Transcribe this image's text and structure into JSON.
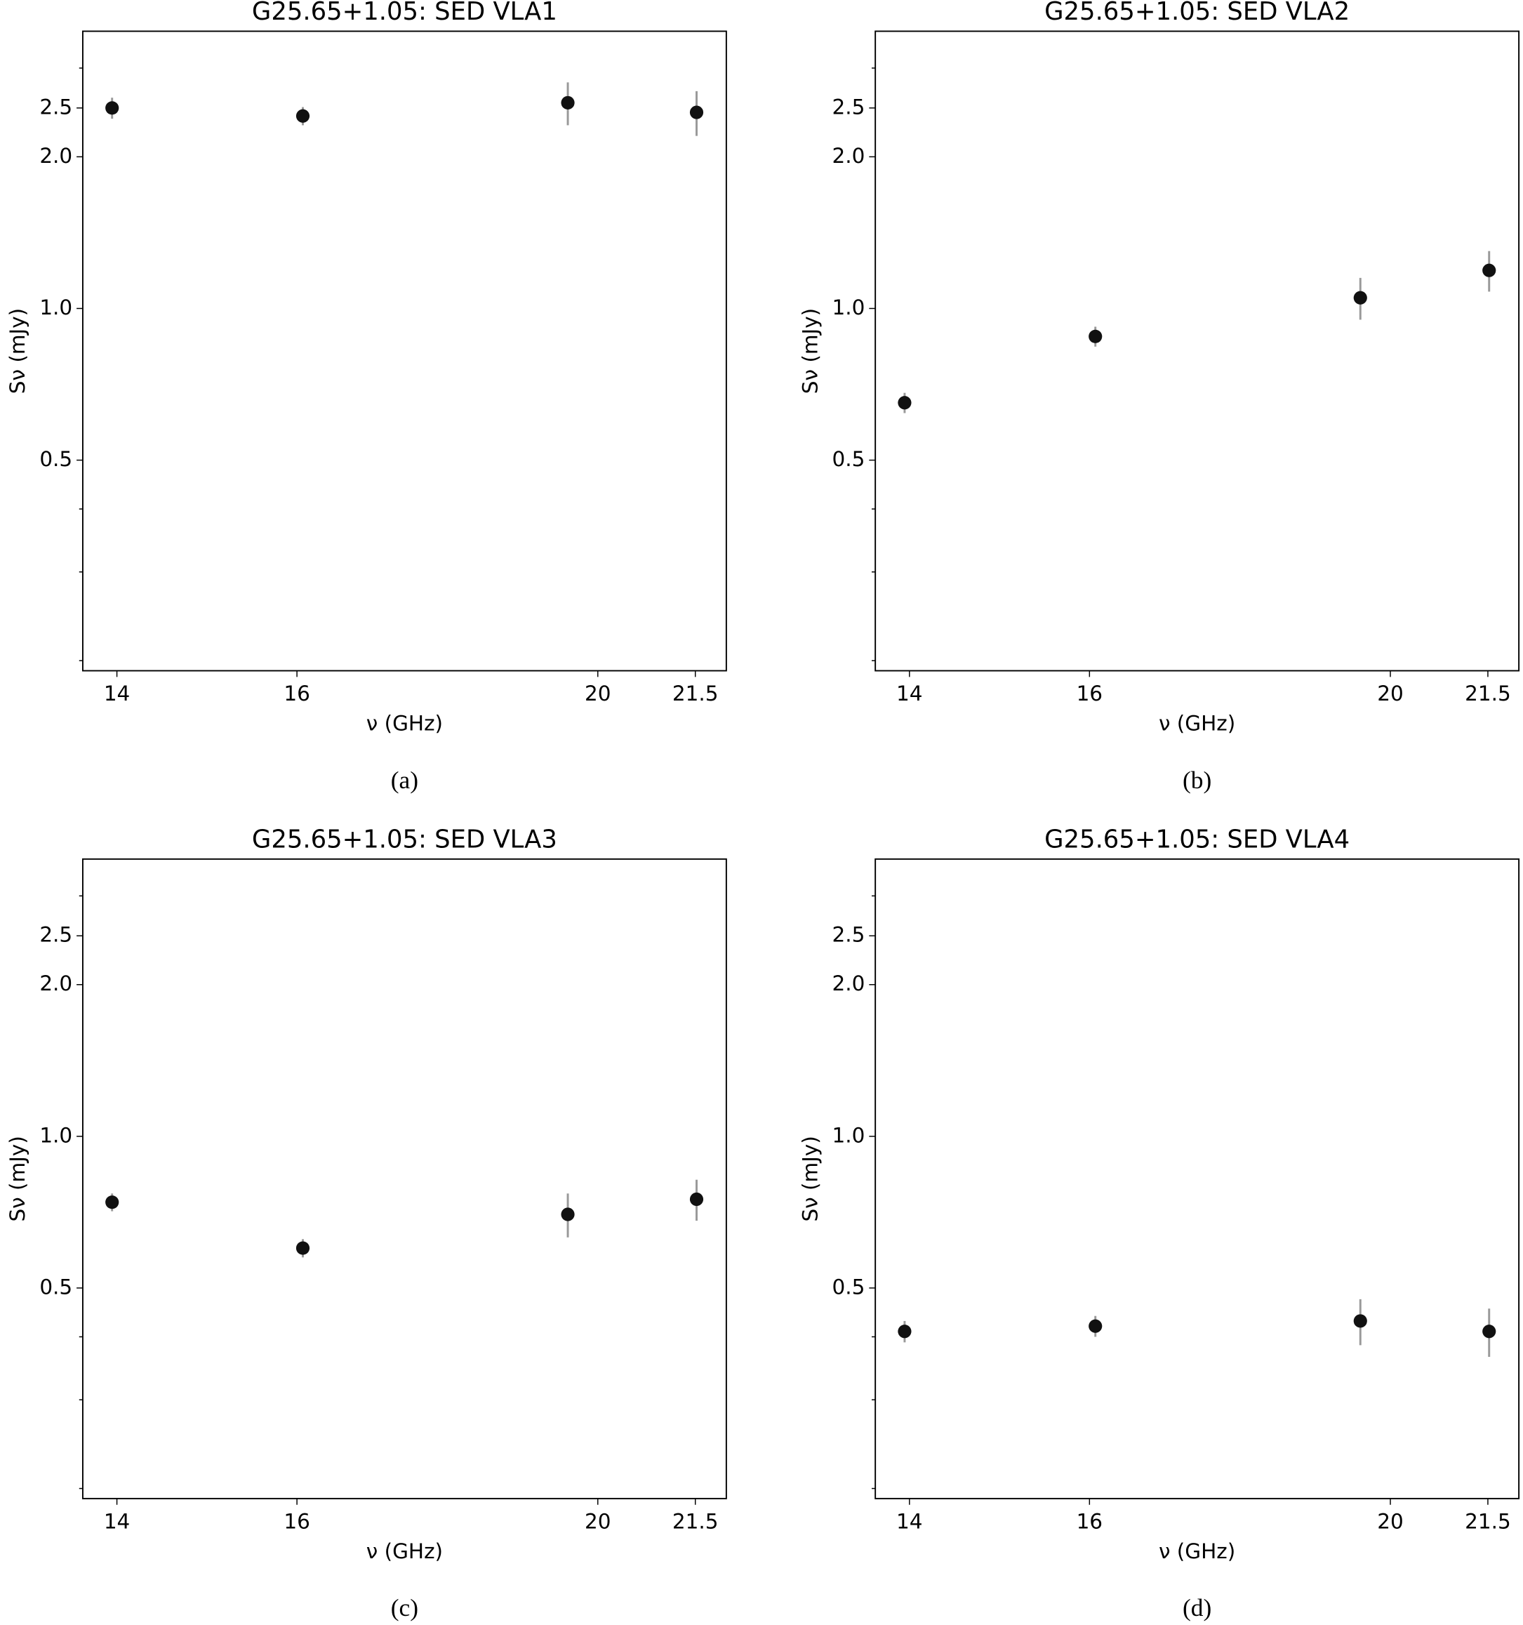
{
  "chart_data": [
    {
      "type": "scatter",
      "title": "G25.65+1.05: SED VLA1",
      "caption": "(a)",
      "x_label": "ν (GHz)",
      "y_label": "Sν (mJy)",
      "x": [
        13.95,
        16.07,
        19.56,
        21.52
      ],
      "values": [
        2.5,
        2.41,
        2.56,
        2.45
      ],
      "errors": [
        0.12,
        0.1,
        0.25,
        0.25
      ],
      "color": "#111111",
      "error_color": "#999999",
      "xscale": "log",
      "yscale": "log",
      "xlim": [
        13.65,
        22
      ],
      "ylim": [
        0.191,
        3.55
      ],
      "xticks": [
        14,
        16,
        20,
        21.5
      ],
      "yticks": [
        {
          "value": 0.5,
          "label": "0.5"
        },
        {
          "value": 1,
          "label": "1.0"
        },
        {
          "value": 2,
          "label": "2.0"
        },
        {
          "value": 2.5,
          "label": "2.5"
        }
      ],
      "yminorticks": [
        0.2,
        0.3,
        0.4,
        3
      ]
    },
    {
      "type": "scatter",
      "title": "G25.65+1.05: SED VLA2",
      "caption": "(b)",
      "x_label": "ν (GHz)",
      "y_label": "Sν (mJy)",
      "x": [
        13.95,
        16.07,
        19.56,
        21.52
      ],
      "values": [
        0.65,
        0.88,
        1.05,
        1.19
      ],
      "errors": [
        0.03,
        0.04,
        0.1,
        0.11
      ],
      "color": "#111111",
      "error_color": "#999999",
      "xscale": "log",
      "yscale": "log",
      "xlim": [
        13.65,
        22
      ],
      "ylim": [
        0.191,
        3.55
      ],
      "xticks": [
        14,
        16,
        20,
        21.5
      ],
      "yticks": [
        {
          "value": 0.5,
          "label": "0.5"
        },
        {
          "value": 1,
          "label": "1.0"
        },
        {
          "value": 2,
          "label": "2.0"
        },
        {
          "value": 2.5,
          "label": "2.5"
        }
      ],
      "yminorticks": [
        0.2,
        0.3,
        0.4,
        3
      ]
    },
    {
      "type": "scatter",
      "title": "G25.65+1.05: SED VLA3",
      "caption": "(c)",
      "x_label": "ν (GHz)",
      "y_label": "Sν (mJy)",
      "x": [
        13.95,
        16.07,
        19.56,
        21.52
      ],
      "values": [
        0.74,
        0.6,
        0.7,
        0.75
      ],
      "errors": [
        0.03,
        0.025,
        0.07,
        0.07
      ],
      "color": "#111111",
      "error_color": "#999999",
      "xscale": "log",
      "yscale": "log",
      "xlim": [
        13.65,
        22
      ],
      "ylim": [
        0.191,
        3.55
      ],
      "xticks": [
        14,
        16,
        20,
        21.5
      ],
      "yticks": [
        {
          "value": 0.5,
          "label": "0.5"
        },
        {
          "value": 1,
          "label": "1.0"
        },
        {
          "value": 2,
          "label": "2.0"
        },
        {
          "value": 2.5,
          "label": "2.5"
        }
      ],
      "yminorticks": [
        0.2,
        0.3,
        0.4,
        3
      ]
    },
    {
      "type": "scatter",
      "title": "G25.65+1.05: SED VLA4",
      "caption": "(d)",
      "x_label": "ν (GHz)",
      "y_label": "Sν (mJy)",
      "x": [
        13.95,
        16.07,
        19.56,
        21.52
      ],
      "values": [
        0.41,
        0.42,
        0.43,
        0.41
      ],
      "errors": [
        0.02,
        0.02,
        0.045,
        0.045
      ],
      "color": "#111111",
      "error_color": "#999999",
      "xscale": "log",
      "yscale": "log",
      "xlim": [
        13.65,
        22
      ],
      "ylim": [
        0.191,
        3.55
      ],
      "xticks": [
        14,
        16,
        20,
        21.5
      ],
      "yticks": [
        {
          "value": 0.5,
          "label": "0.5"
        },
        {
          "value": 1,
          "label": "1.0"
        },
        {
          "value": 2,
          "label": "2.0"
        },
        {
          "value": 2.5,
          "label": "2.5"
        }
      ],
      "yminorticks": [
        0.2,
        0.3,
        0.4,
        3
      ]
    }
  ]
}
